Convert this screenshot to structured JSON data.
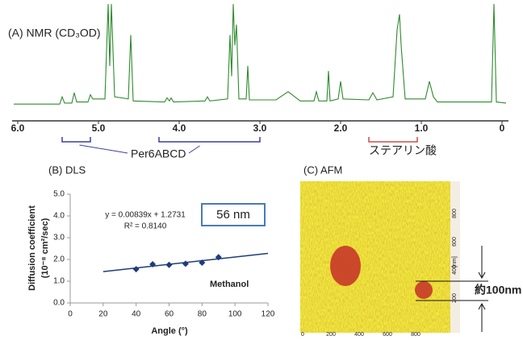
{
  "chart_data": [
    {
      "type": "line",
      "title": "(A) NMR (CD₃OD)",
      "color": "#2e8b2e",
      "x": [
        6.05,
        5.48,
        5.45,
        5.42,
        5.33,
        5.3,
        5.27,
        5.13,
        5.1,
        5.07,
        4.92,
        4.88,
        4.86,
        4.84,
        4.8,
        4.63,
        4.6,
        4.57,
        4.18,
        4.15,
        4.12,
        4.1,
        4.07,
        3.68,
        3.65,
        3.62,
        3.4,
        3.37,
        3.35,
        3.33,
        3.31,
        3.29,
        3.26,
        3.17,
        3.15,
        3.13,
        2.8,
        2.65,
        2.5,
        2.33,
        2.3,
        2.27,
        2.17,
        2.15,
        2.13,
        2.03,
        2.0,
        1.97,
        1.65,
        1.6,
        1.55,
        1.35,
        1.3,
        1.27,
        1.25,
        1.2,
        0.95,
        0.9,
        0.85,
        0.8,
        0.13,
        0.1,
        0.07,
        -0.05
      ],
      "values": [
        3,
        3,
        10,
        4,
        4,
        14,
        5,
        5,
        12,
        8,
        8,
        100,
        40,
        100,
        10,
        8,
        70,
        6,
        5,
        9,
        6,
        9,
        5,
        6,
        10,
        6,
        8,
        70,
        30,
        100,
        60,
        80,
        8,
        8,
        40,
        7,
        7,
        15,
        6,
        6,
        15,
        6,
        6,
        35,
        6,
        8,
        25,
        8,
        7,
        14,
        7,
        10,
        75,
        90,
        60,
        8,
        8,
        25,
        10,
        5,
        5,
        100,
        5,
        4
      ],
      "xlim": [
        6.07,
        -0.08
      ],
      "ylim": [
        0,
        100
      ],
      "xticks": [
        {
          "value": 6,
          "label": "6.0"
        },
        {
          "value": 5,
          "label": "5.0"
        },
        {
          "value": 4,
          "label": "4.0"
        },
        {
          "value": 3,
          "label": "3.0"
        },
        {
          "value": 2,
          "label": "2.0"
        },
        {
          "value": 1,
          "label": "1.0"
        },
        0
      ],
      "annotations": [
        {
          "text": "Per6ABCD",
          "color": "#3c3ca8",
          "ranges": [
            [
              5.45,
              5.1
            ],
            [
              4.25,
              3.0
            ]
          ]
        },
        {
          "text": "ステアリン酸",
          "color": "#d04a4a",
          "ranges": [
            [
              1.65,
              1.05
            ]
          ]
        }
      ]
    },
    {
      "type": "scatter",
      "title": "(B) DLS",
      "color": "#1f3c78",
      "x": [
        40,
        50,
        60,
        70,
        80,
        90
      ],
      "values": [
        1.55,
        1.78,
        1.75,
        1.8,
        1.85,
        2.1
      ],
      "xlim": [
        0,
        120
      ],
      "ylim": [
        0,
        5
      ],
      "xticks": [
        0,
        20,
        40,
        60,
        80,
        100,
        120
      ],
      "yticks": [
        {
          "value": 0,
          "label": "0.0"
        },
        {
          "value": 1,
          "label": "1.0"
        },
        {
          "value": 2,
          "label": "2.0"
        },
        {
          "value": 3,
          "label": "3.0"
        },
        {
          "value": 4,
          "label": "4.0"
        },
        {
          "value": 5,
          "label": "5.0"
        }
      ],
      "xlabel": "Angle (°)",
      "ylabel": "Diffusion coefficient",
      "ylabel_unit": "(10⁻⁸ cm²/sec)",
      "fit_line": {
        "x": [
          20,
          120
        ],
        "values": [
          1.4409,
          2.2799
        ]
      },
      "equation": "y = 0.00839x + 1.2731",
      "r_squared": "R² = 0.8140",
      "size_label": "56 nm",
      "series_label": "Methanol"
    },
    {
      "type": "image",
      "title": "(C) AFM",
      "xlim": [
        0,
        1000
      ],
      "ylim": [
        0,
        1000
      ],
      "xticks": [
        0,
        200,
        400,
        600,
        800
      ],
      "yticks": [
        200,
        400,
        600,
        800
      ],
      "unit": "[nm]",
      "scale_label": "約100nm"
    }
  ]
}
